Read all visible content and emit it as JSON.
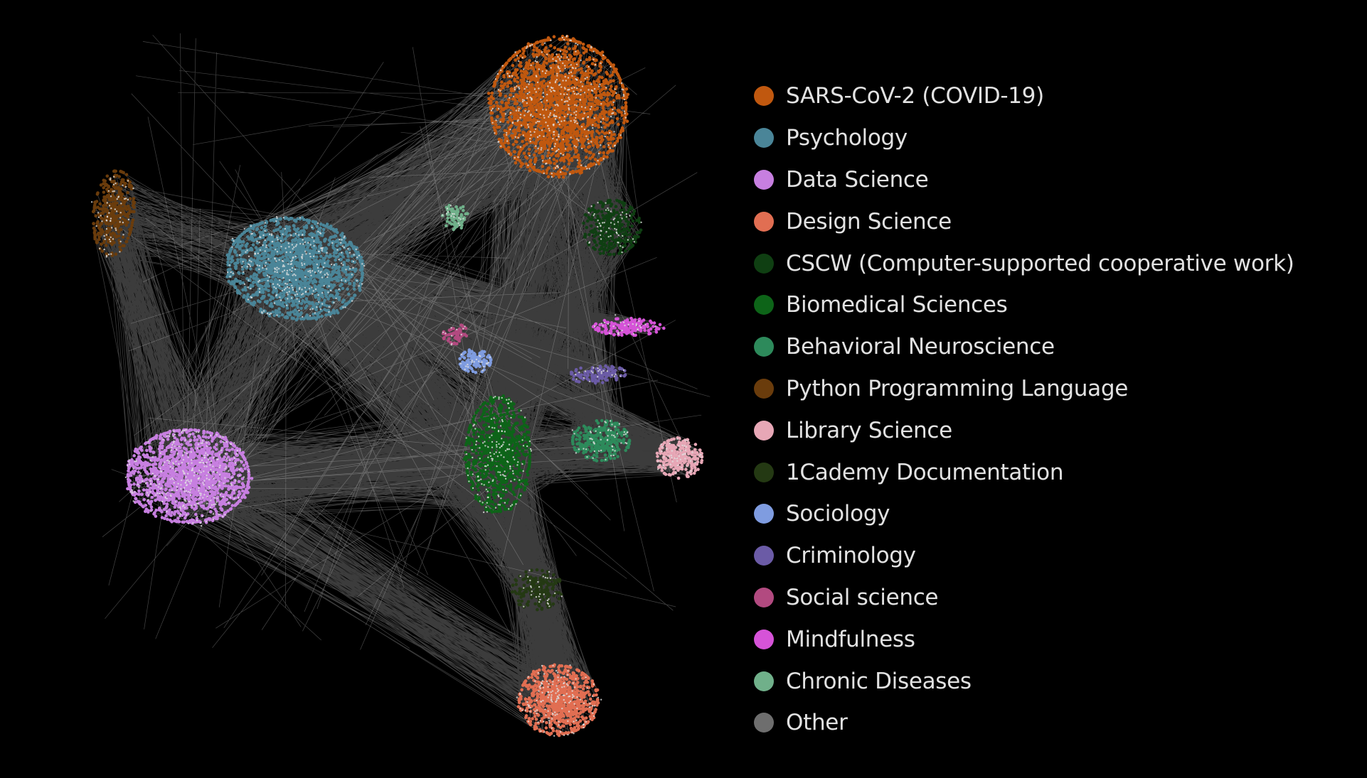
{
  "legend": {
    "items": [
      {
        "label": "SARS-CoV-2 (COVID-19)",
        "color": "#c0580f"
      },
      {
        "label": "Psychology",
        "color": "#4a8598"
      },
      {
        "label": "Data Science",
        "color": "#c77fe0"
      },
      {
        "label": "Design Science",
        "color": "#e16e52"
      },
      {
        "label": "CSCW (Computer-supported cooperative work)",
        "color": "#0f3f12"
      },
      {
        "label": "Biomedical Sciences",
        "color": "#0d6418"
      },
      {
        "label": "Behavioral Neuroscience",
        "color": "#2d8a5b"
      },
      {
        "label": "Python Programming Language",
        "color": "#6a3c0c"
      },
      {
        "label": "Library Science",
        "color": "#e7a7b6"
      },
      {
        "label": "1Cademy Documentation",
        "color": "#243913"
      },
      {
        "label": "Sociology",
        "color": "#7f9ce0"
      },
      {
        "label": "Criminology",
        "color": "#6b5ba6"
      },
      {
        "label": "Social science",
        "color": "#b24a80"
      },
      {
        "label": "Mindfulness",
        "color": "#d653d8"
      },
      {
        "label": "Chronic Diseases",
        "color": "#70b08a"
      },
      {
        "label": "Other",
        "color": "#6e6e6e"
      }
    ]
  },
  "graph": {
    "background": "#000000",
    "edge_color": "#d8d8d8",
    "clusters": [
      {
        "name": "SARS-CoV-2 (COVID-19)",
        "category": 0
      },
      {
        "name": "Psychology",
        "category": 1
      },
      {
        "name": "Data Science",
        "category": 2
      },
      {
        "name": "Design Science",
        "category": 3
      },
      {
        "name": "CSCW (Computer-supported cooperative work)",
        "category": 4
      },
      {
        "name": "Biomedical Sciences",
        "category": 5
      },
      {
        "name": "Behavioral Neuroscience",
        "category": 6
      },
      {
        "name": "Python Programming Language",
        "category": 7
      },
      {
        "name": "Library Science",
        "category": 8
      },
      {
        "name": "1Cademy Documentation",
        "category": 9
      },
      {
        "name": "Sociology",
        "category": 10
      },
      {
        "name": "Criminology",
        "category": 11
      },
      {
        "name": "Social science",
        "category": 12
      },
      {
        "name": "Mindfulness",
        "category": 13
      },
      {
        "name": "Chronic Diseases",
        "category": 14
      }
    ]
  }
}
